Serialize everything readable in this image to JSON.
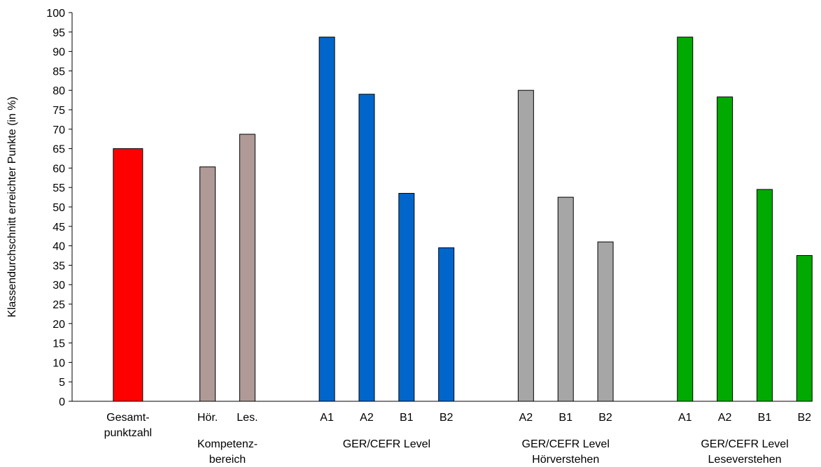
{
  "chart_data": {
    "type": "bar",
    "ylabel": "Klassendurchschnitt erreichter Punkte (in %)",
    "xlabel": "",
    "ylim": [
      0,
      100
    ],
    "ytick_step": 5,
    "grid": false,
    "groups": [
      {
        "label_lines": [
          "Gesamt-",
          "punktzahl"
        ],
        "color": "#ff0000",
        "bars": [
          {
            "label": "",
            "value": 65
          }
        ]
      },
      {
        "label_lines": [
          "Kompetenz-",
          "bereich"
        ],
        "color": "#b09a98",
        "bars": [
          {
            "label": "Hör.",
            "value": 60.3
          },
          {
            "label": "Les.",
            "value": 68.7
          }
        ]
      },
      {
        "label_lines": [
          "GER/CEFR Level"
        ],
        "color": "#0066cc",
        "bars": [
          {
            "label": "A1",
            "value": 93.7
          },
          {
            "label": "A2",
            "value": 79
          },
          {
            "label": "B1",
            "value": 53.5
          },
          {
            "label": "B2",
            "value": 39.5
          }
        ]
      },
      {
        "label_lines": [
          "GER/CEFR Level",
          "Hörverstehen"
        ],
        "color": "#a6a6a6",
        "bars": [
          {
            "label": "A2",
            "value": 80
          },
          {
            "label": "B1",
            "value": 52.5
          },
          {
            "label": "B2",
            "value": 41
          }
        ]
      },
      {
        "label_lines": [
          "GER/CEFR Level",
          "Leseverstehen"
        ],
        "color": "#00aa00",
        "bars": [
          {
            "label": "A1",
            "value": 93.7
          },
          {
            "label": "A2",
            "value": 78.3
          },
          {
            "label": "B1",
            "value": 54.5
          },
          {
            "label": "B2",
            "value": 37.5
          }
        ]
      }
    ]
  }
}
